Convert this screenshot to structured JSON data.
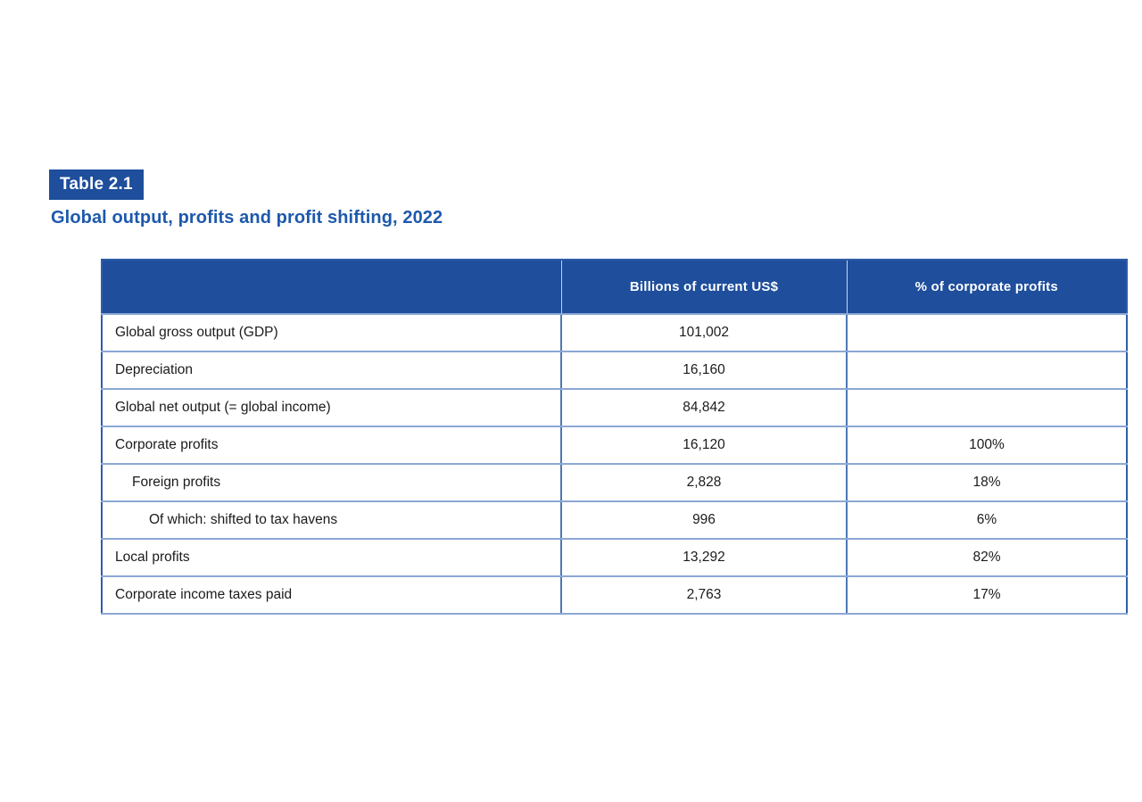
{
  "page": {
    "table_label": "Table 2.1",
    "title": "Global output, profits and profit shifting, 2022"
  },
  "table": {
    "columns": [
      "",
      "Billions of current US$",
      "% of corporate profits"
    ],
    "rows": [
      {
        "label": "Global gross output (GDP)",
        "indent": 0,
        "usd": "101,002",
        "pct": ""
      },
      {
        "label": "Depreciation",
        "indent": 0,
        "usd": "16,160",
        "pct": ""
      },
      {
        "label": "Global net output (= global income)",
        "indent": 0,
        "usd": "84,842",
        "pct": ""
      },
      {
        "label": "Corporate profits",
        "indent": 0,
        "usd": "16,120",
        "pct": "100%"
      },
      {
        "label": "Foreign profits",
        "indent": 1,
        "usd": "2,828",
        "pct": "18%"
      },
      {
        "label": "Of which: shifted to tax havens",
        "indent": 2,
        "usd": "996",
        "pct": "6%"
      },
      {
        "label": "Local profits",
        "indent": 0,
        "usd": "13,292",
        "pct": "82%"
      },
      {
        "label": "Corporate income taxes paid",
        "indent": 0,
        "usd": "2,763",
        "pct": "17%"
      }
    ]
  },
  "colors": {
    "badge_bg": "#1E4E9C",
    "title_color": "#1D59AC",
    "header_bg": "#1E4E9C",
    "outer_border": "#2F5DA8",
    "row_border": "#8BA7D4",
    "divider": "#4E77B5"
  }
}
